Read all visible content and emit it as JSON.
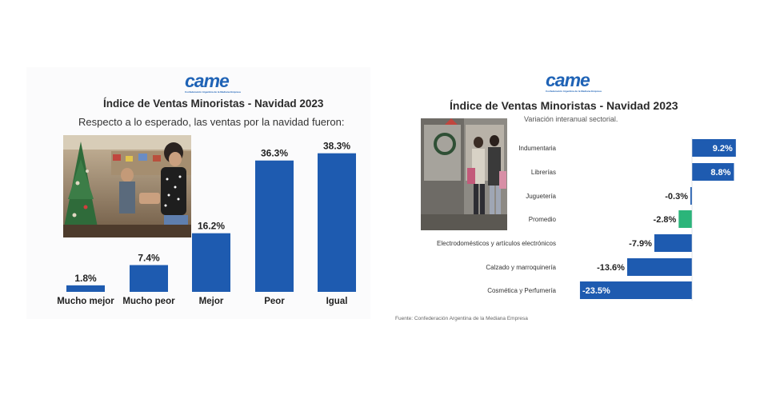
{
  "logo_text": "came",
  "logo_subtext": "Confederación Argentina de la Mediana Empresa",
  "colors": {
    "bar": "#1e5bb0",
    "highlight": "#2bb57a",
    "title": "#2a2a2a"
  },
  "left_chart": {
    "title": "Índice de Ventas Minoristas - Navidad 2023",
    "subtitle": "Respecto a lo esperado, las ventas por la navidad fueron:",
    "photo_icon": "store-christmas-photo"
  },
  "right_chart": {
    "title": "Índice de Ventas Minoristas - Navidad 2023",
    "subtitle": "Variación interanual sectorial.",
    "source": "Fuente: Confederación Argentina de la Mediana Empresa",
    "photo_icon": "shoppers-photo"
  },
  "chart_data": [
    {
      "type": "bar",
      "title": "Índice de Ventas Minoristas - Navidad 2023",
      "subtitle": "Respecto a lo esperado, las ventas por la navidad fueron:",
      "categories": [
        "Mucho mejor",
        "Mucho peor",
        "Mejor",
        "Peor",
        "Igual"
      ],
      "values": [
        1.8,
        7.4,
        16.2,
        36.3,
        38.3
      ],
      "labels": [
        "1.8%",
        "7.4%",
        "16.2%",
        "36.3%",
        "38.3%"
      ],
      "ylim": [
        0,
        40
      ],
      "grid": false
    },
    {
      "type": "bar",
      "orientation": "horizontal",
      "title": "Índice de Ventas Minoristas - Navidad 2023",
      "subtitle": "Variación interanual sectorial.",
      "categories": [
        "Indumentaria",
        "Librerías",
        "Juguetería",
        "Promedio",
        "Electrodomésticos y artículos electrónicos",
        "Calzado y marroquinería",
        "Cosmética y Perfumería"
      ],
      "values": [
        9.2,
        8.8,
        -0.3,
        -2.8,
        -7.9,
        -13.6,
        -23.5
      ],
      "labels": [
        "9.2%",
        "8.8%",
        "-0.3%",
        "-2.8%",
        "-7.9%",
        "-13.6%",
        "-23.5%"
      ],
      "highlight": "Promedio",
      "xlim": [
        -25,
        10
      ],
      "grid": false
    }
  ]
}
